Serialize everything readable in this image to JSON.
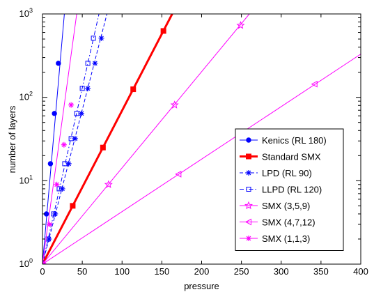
{
  "chart_data": {
    "type": "line",
    "title": "",
    "xlabel": "pressure",
    "ylabel": "number of layers",
    "xlim": [
      0,
      400
    ],
    "ylim": [
      1,
      1000
    ],
    "yscale": "log",
    "x_ticks": [
      "0",
      "50",
      "100",
      "150",
      "200",
      "250",
      "300",
      "350",
      "400"
    ],
    "y_ticks": [
      {
        "base": "10",
        "exp": "0"
      },
      {
        "base": "10",
        "exp": "1"
      },
      {
        "base": "10",
        "exp": "2"
      },
      {
        "base": "10",
        "exp": "3"
      }
    ],
    "grid": false,
    "legend_position": "bottom-right",
    "series": [
      {
        "name": "Kenics (RL 180)",
        "color": "#0000ff",
        "line": "solid",
        "width": 1,
        "marker": "dot",
        "x": [
          0,
          5,
          10,
          15,
          20
        ],
        "y": [
          1,
          4,
          16,
          64,
          256
        ],
        "fit": {
          "x": [
            0,
            27.5
          ],
          "y": [
            1,
            1000
          ]
        }
      },
      {
        "name": "Standard SMX",
        "color": "#ff0000",
        "line": "solid",
        "width": 3,
        "marker": "square",
        "x": [
          0,
          38,
          76,
          114,
          152
        ],
        "y": [
          1,
          5,
          25,
          125,
          625
        ],
        "fit": {
          "x": [
            0,
            163
          ],
          "y": [
            1,
            1000
          ]
        }
      },
      {
        "name": "LPD (RL 90)",
        "color": "#0000ff",
        "line": "dashed",
        "width": 1,
        "marker": "asterisk",
        "x": [
          0,
          8,
          16,
          25,
          33,
          41,
          49,
          57,
          66,
          74
        ],
        "y": [
          1,
          2,
          4,
          8,
          16,
          32,
          64,
          128,
          256,
          512
        ],
        "fit": {
          "x": [
            0,
            81
          ],
          "y": [
            1,
            1000
          ]
        }
      },
      {
        "name": "LLPD (RL 120)",
        "color": "#0000ff",
        "line": "dashdot",
        "width": 1,
        "marker": "square-open",
        "x": [
          0,
          7,
          14,
          21,
          28,
          36,
          43,
          50,
          57,
          64
        ],
        "y": [
          1,
          2,
          4,
          8,
          16,
          32,
          64,
          128,
          256,
          512
        ],
        "fit": {
          "x": [
            0,
            71
          ],
          "y": [
            1,
            1000
          ]
        }
      },
      {
        "name": "SMX (3,5,9)",
        "color": "#ff00ff",
        "line": "solid",
        "width": 1,
        "marker": "star",
        "x": [
          0,
          83,
          166,
          249
        ],
        "y": [
          1,
          9,
          81,
          729
        ],
        "fit": {
          "x": [
            0,
            260
          ],
          "y": [
            1,
            1000
          ]
        }
      },
      {
        "name": "SMX (4,7,12)",
        "color": "#ff00ff",
        "line": "solid",
        "width": 1,
        "marker": "triangle-left",
        "x": [
          0,
          171,
          342
        ],
        "y": [
          1,
          12,
          144
        ],
        "fit": {
          "x": [
            0,
            400
          ],
          "y": [
            1,
            330
          ]
        }
      },
      {
        "name": "SMX (1,1,3)",
        "color": "#ff00ff",
        "line": "solid",
        "width": 1,
        "marker": "asterisk",
        "x": [
          0,
          9,
          18,
          27,
          36
        ],
        "y": [
          1,
          3,
          9,
          27,
          81
        ],
        "fit": {
          "x": [
            0,
            43
          ],
          "y": [
            1,
            1000
          ]
        }
      }
    ]
  }
}
